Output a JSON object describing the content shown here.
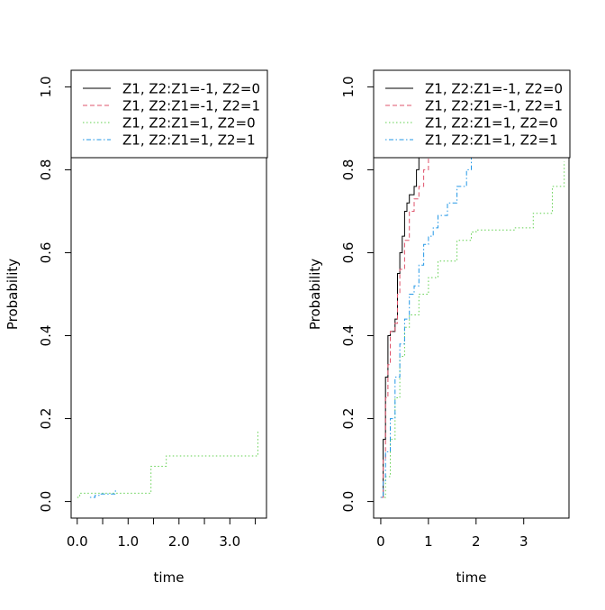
{
  "chart_data": [
    {
      "type": "line",
      "xlabel": "time",
      "ylabel": "Probability",
      "xlim": [
        -0.12,
        3.72
      ],
      "ylim": [
        -0.04,
        1.04
      ],
      "x_ticks": [
        0.0,
        0.5,
        1.0,
        1.5,
        2.0,
        2.5,
        3.0,
        3.5
      ],
      "x_tick_labels": [
        "0.0",
        "",
        "1.0",
        "",
        "2.0",
        "",
        "3.0",
        ""
      ],
      "y_ticks": [
        0.0,
        0.2,
        0.4,
        0.6,
        0.8,
        1.0
      ],
      "y_tick_labels": [
        "0.0",
        "0.2",
        "0.4",
        "0.6",
        "0.8",
        "1.0"
      ],
      "grid": false,
      "legend_position": "top-left",
      "series": [
        {
          "name": "Z1, Z2:Z1=-1, Z2=0",
          "color": "#000000",
          "dash": "solid",
          "x": [],
          "y": []
        },
        {
          "name": "Z1, Z2:Z1=-1, Z2=1",
          "color": "#DF536B",
          "dash": "dashed",
          "x": [],
          "y": []
        },
        {
          "name": "Z1, Z2:Z1=1, Z2=0",
          "color": "#61D04F",
          "dash": "dotted",
          "x": [
            0.0,
            0.05,
            1.4,
            1.45,
            1.75,
            3.55,
            3.55
          ],
          "y": [
            0.01,
            0.02,
            0.02,
            0.085,
            0.11,
            0.11,
            0.17
          ]
        },
        {
          "name": "Z1, Z2:Z1=1, Z2=1",
          "color": "#2297E6",
          "dash": "dotdash",
          "x": [
            0.25,
            0.35,
            0.45,
            0.75,
            0.75
          ],
          "y": [
            0.01,
            0.015,
            0.018,
            0.018,
            0.03
          ]
        }
      ]
    },
    {
      "type": "line",
      "xlabel": "time",
      "ylabel": "Probability",
      "xlim": [
        -0.15,
        3.95
      ],
      "ylim": [
        -0.04,
        1.04
      ],
      "x_ticks": [
        0,
        1,
        2,
        3
      ],
      "x_tick_labels": [
        "0",
        "1",
        "2",
        "3"
      ],
      "y_ticks": [
        0.0,
        0.2,
        0.4,
        0.6,
        0.8,
        1.0
      ],
      "y_tick_labels": [
        "0.0",
        "0.2",
        "0.4",
        "0.6",
        "0.8",
        "1.0"
      ],
      "grid": false,
      "legend_position": "top-left",
      "series": [
        {
          "name": "Z1, Z2:Z1=-1, Z2=0",
          "color": "#000000",
          "dash": "solid",
          "x": [
            0.0,
            0.05,
            0.1,
            0.15,
            0.2,
            0.3,
            0.35,
            0.4,
            0.45,
            0.5,
            0.55,
            0.6,
            0.7,
            0.75,
            0.8,
            0.85
          ],
          "y": [
            0.01,
            0.15,
            0.3,
            0.4,
            0.41,
            0.44,
            0.55,
            0.6,
            0.64,
            0.7,
            0.72,
            0.74,
            0.76,
            0.8,
            0.83,
            0.85
          ]
        },
        {
          "name": "Z1, Z2:Z1=-1, Z2=1",
          "color": "#DF536B",
          "dash": "dashed",
          "x": [
            0.0,
            0.05,
            0.1,
            0.15,
            0.2,
            0.3,
            0.35,
            0.4,
            0.5,
            0.6,
            0.7,
            0.8,
            0.9,
            1.0
          ],
          "y": [
            0.01,
            0.1,
            0.25,
            0.33,
            0.41,
            0.43,
            0.5,
            0.56,
            0.63,
            0.7,
            0.73,
            0.76,
            0.8,
            0.83
          ]
        },
        {
          "name": "Z1, Z2:Z1=1, Z2=0",
          "color": "#61D04F",
          "dash": "dotted",
          "x": [
            0.0,
            0.1,
            0.2,
            0.3,
            0.4,
            0.5,
            0.6,
            0.8,
            1.0,
            1.2,
            1.6,
            1.9,
            2.0,
            2.2,
            2.5,
            2.8,
            3.0,
            3.2,
            3.4,
            3.6,
            3.8,
            3.85
          ],
          "y": [
            0.01,
            0.06,
            0.15,
            0.25,
            0.35,
            0.42,
            0.45,
            0.5,
            0.54,
            0.58,
            0.63,
            0.65,
            0.655,
            0.655,
            0.655,
            0.66,
            0.66,
            0.695,
            0.695,
            0.76,
            0.76,
            0.82
          ]
        },
        {
          "name": "Z1, Z2:Z1=1, Z2=1",
          "color": "#2297E6",
          "dash": "dotdash",
          "x": [
            0.0,
            0.05,
            0.1,
            0.2,
            0.3,
            0.4,
            0.5,
            0.6,
            0.7,
            0.8,
            0.9,
            1.0,
            1.1,
            1.2,
            1.4,
            1.6,
            1.8,
            1.9
          ],
          "y": [
            0.01,
            0.05,
            0.12,
            0.2,
            0.3,
            0.38,
            0.44,
            0.5,
            0.52,
            0.57,
            0.62,
            0.64,
            0.66,
            0.69,
            0.72,
            0.76,
            0.8,
            0.83
          ]
        }
      ]
    }
  ]
}
